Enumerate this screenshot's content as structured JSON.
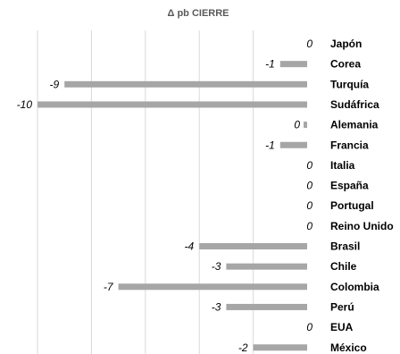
{
  "chart_data": {
    "type": "bar",
    "orientation": "horizontal",
    "title": "Δ pb CIERRE",
    "xlabel": "",
    "ylabel": "",
    "categories": [
      "Japón",
      "Corea",
      "Turquía",
      "Sudáfrica",
      "Alemania",
      "Francia",
      "Italia",
      "España",
      "Portugal",
      "Reino Unido",
      "Brasil",
      "Chile",
      "Colombia",
      "Perú",
      "EUA",
      "México"
    ],
    "values": [
      0,
      -1,
      -9,
      -10,
      0,
      -1,
      0,
      0,
      0,
      0,
      -4,
      -3,
      -7,
      -3,
      0,
      -2
    ],
    "value_labels": [
      "0",
      "-1",
      "-9",
      "-10",
      "0",
      "-1",
      "0",
      "0",
      "0",
      "0",
      "-4",
      "-3",
      "-7",
      "-3",
      "0",
      "-2"
    ],
    "xlim": [
      -12,
      0
    ],
    "grid": true,
    "legend": "none",
    "colors": {
      "bar": "#a6a6a6",
      "grid": "#d9d9d9",
      "title": "#595959",
      "text": "#000000"
    }
  }
}
